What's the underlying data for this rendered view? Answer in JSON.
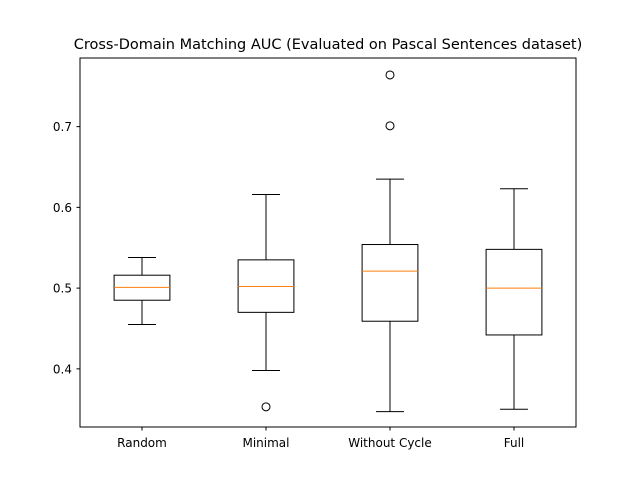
{
  "chart_data": {
    "type": "box",
    "title": "Cross-Domain Matching AUC (Evaluated on Pascal Sentences dataset)",
    "xlabel": "",
    "ylabel": "",
    "ylim": [
      0.328,
      0.785
    ],
    "yticks": [
      0.4,
      0.5,
      0.6,
      0.7
    ],
    "grid": false,
    "categories": [
      "Random",
      "Minimal",
      "Without Cycle",
      "Full"
    ],
    "boxes": [
      {
        "label": "Random",
        "whisker_low": 0.455,
        "q1": 0.485,
        "median": 0.501,
        "q3": 0.516,
        "whisker_high": 0.538,
        "outliers": []
      },
      {
        "label": "Minimal",
        "whisker_low": 0.398,
        "q1": 0.47,
        "median": 0.502,
        "q3": 0.535,
        "whisker_high": 0.616,
        "outliers": [
          0.353
        ]
      },
      {
        "label": "Without Cycle",
        "whisker_low": 0.347,
        "q1": 0.459,
        "median": 0.521,
        "q3": 0.554,
        "whisker_high": 0.635,
        "outliers": [
          0.701,
          0.764
        ]
      },
      {
        "label": "Full",
        "whisker_low": 0.35,
        "q1": 0.442,
        "median": 0.5,
        "q3": 0.548,
        "whisker_high": 0.623,
        "outliers": []
      }
    ],
    "colors": {
      "box": "#000000",
      "median": "#ff7f0e",
      "outlier": "#000000"
    }
  }
}
